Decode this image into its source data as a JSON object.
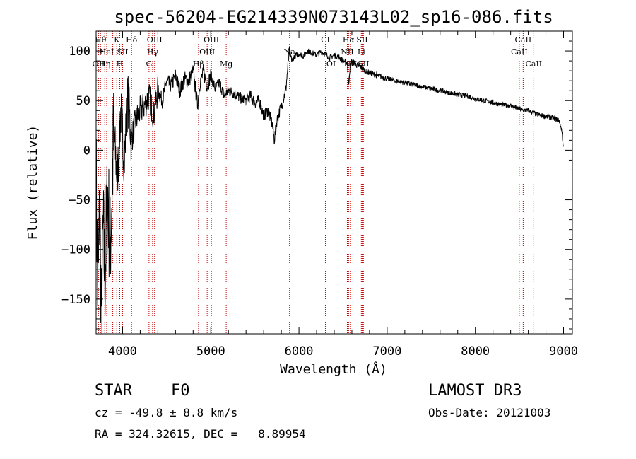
{
  "chart_data": {
    "type": "line",
    "title": "spec-56204-EG214339N073143L02_sp16-086.fits",
    "xlabel": "Wavelength (Å)",
    "ylabel": "Flux (relative)",
    "xlim": [
      3700,
      9100
    ],
    "ylim": [
      -185,
      120
    ],
    "x_ticks": [
      4000,
      5000,
      6000,
      7000,
      8000,
      9000
    ],
    "y_ticks": [
      -150,
      -100,
      -50,
      0,
      50,
      100
    ],
    "series": [
      {
        "name": "flux",
        "x": [
          3700,
          3720,
          3740,
          3760,
          3780,
          3800,
          3830,
          3860,
          3900,
          3940,
          3980,
          4020,
          4060,
          4100,
          4150,
          4200,
          4250,
          4300,
          4350,
          4400,
          4450,
          4500,
          4550,
          4600,
          4650,
          4700,
          4750,
          4800,
          4850,
          4880,
          4920,
          4960,
          5000,
          5050,
          5100,
          5150,
          5200,
          5250,
          5300,
          5350,
          5400,
          5450,
          5500,
          5550,
          5600,
          5650,
          5700,
          5720,
          5750,
          5800,
          5850,
          5890,
          5920,
          5950,
          6000,
          6050,
          6100,
          6150,
          6200,
          6250,
          6300,
          6350,
          6400,
          6450,
          6500,
          6550,
          6563,
          6580,
          6600,
          6650,
          6700,
          6750,
          6800,
          6900,
          7000,
          7100,
          7200,
          7300,
          7400,
          7500,
          7600,
          7700,
          7800,
          7900,
          8000,
          8100,
          8200,
          8300,
          8400,
          8450,
          8500,
          8550,
          8600,
          8650,
          8700,
          8750,
          8800,
          8850,
          8900,
          8950,
          8980,
          9000
        ],
        "values": [
          -20,
          -150,
          -60,
          -170,
          -80,
          -130,
          -40,
          -100,
          20,
          -30,
          40,
          -10,
          55,
          10,
          30,
          40,
          45,
          55,
          35,
          60,
          50,
          70,
          65,
          75,
          60,
          72,
          70,
          80,
          45,
          70,
          78,
          65,
          75,
          62,
          68,
          55,
          60,
          58,
          55,
          52,
          50,
          55,
          48,
          50,
          35,
          40,
          25,
          10,
          30,
          45,
          60,
          100,
          90,
          95,
          97,
          95,
          100,
          98,
          96,
          99,
          97,
          93,
          96,
          94,
          90,
          88,
          65,
          85,
          90,
          86,
          84,
          80,
          78,
          75,
          72,
          70,
          68,
          66,
          64,
          62,
          60,
          58,
          56,
          55,
          52,
          50,
          48,
          46,
          45,
          43,
          42,
          40,
          40,
          38,
          36,
          35,
          34,
          33,
          32,
          30,
          20,
          2
        ]
      }
    ],
    "lines": [
      {
        "wavelength": 3727,
        "label": "OII",
        "row": 3
      },
      {
        "wavelength": 3750,
        "label": "Hθ",
        "row": 1
      },
      {
        "wavelength": 3798,
        "label": "Hη",
        "row": 3
      },
      {
        "wavelength": 3820,
        "label": "HeI",
        "row": 2
      },
      {
        "wavelength": 3889,
        "label": "",
        "row": 0
      },
      {
        "wavelength": 3934,
        "label": "K",
        "row": 1
      },
      {
        "wavelength": 3968,
        "label": "H",
        "row": 3
      },
      {
        "wavelength": 4000,
        "label": "SII",
        "row": 2
      },
      {
        "wavelength": 4102,
        "label": "Hδ",
        "row": 1
      },
      {
        "wavelength": 4300,
        "label": "G",
        "row": 3
      },
      {
        "wavelength": 4340,
        "label": "Hγ",
        "row": 2
      },
      {
        "wavelength": 4363,
        "label": "OIII",
        "row": 1
      },
      {
        "wavelength": 4861,
        "label": "Hβ",
        "row": 3
      },
      {
        "wavelength": 4959,
        "label": "OIII",
        "row": 2
      },
      {
        "wavelength": 5007,
        "label": "OIII",
        "row": 1
      },
      {
        "wavelength": 5175,
        "label": "Mg",
        "row": 3
      },
      {
        "wavelength": 5893,
        "label": "Na",
        "row": 2
      },
      {
        "wavelength": 6300,
        "label": "CI",
        "row": 1
      },
      {
        "wavelength": 6364,
        "label": "OI",
        "row": 3
      },
      {
        "wavelength": 6548,
        "label": "NII",
        "row": 2
      },
      {
        "wavelength": 6563,
        "label": "Hα",
        "row": 1
      },
      {
        "wavelength": 6583,
        "label": "NII",
        "row": 3
      },
      {
        "wavelength": 6707,
        "label": "Li",
        "row": 2
      },
      {
        "wavelength": 6716,
        "label": "SII",
        "row": 1
      },
      {
        "wavelength": 6731,
        "label": "SII",
        "row": 3
      },
      {
        "wavelength": 8498,
        "label": "CaII",
        "row": 2
      },
      {
        "wavelength": 8542,
        "label": "CaII",
        "row": 1
      },
      {
        "wavelength": 8662,
        "label": "CaII",
        "row": 3
      }
    ]
  },
  "info": {
    "class": "STAR",
    "subclass": "F0",
    "survey": "LAMOST DR3",
    "cz": "cz = -49.8 ± 8.8 km/s",
    "obs_date": "Obs-Date: 20121003",
    "radec": "RA = 324.32615, DEC =   8.89954"
  },
  "colors": {
    "line": "#000000",
    "marker": "#c00000"
  }
}
